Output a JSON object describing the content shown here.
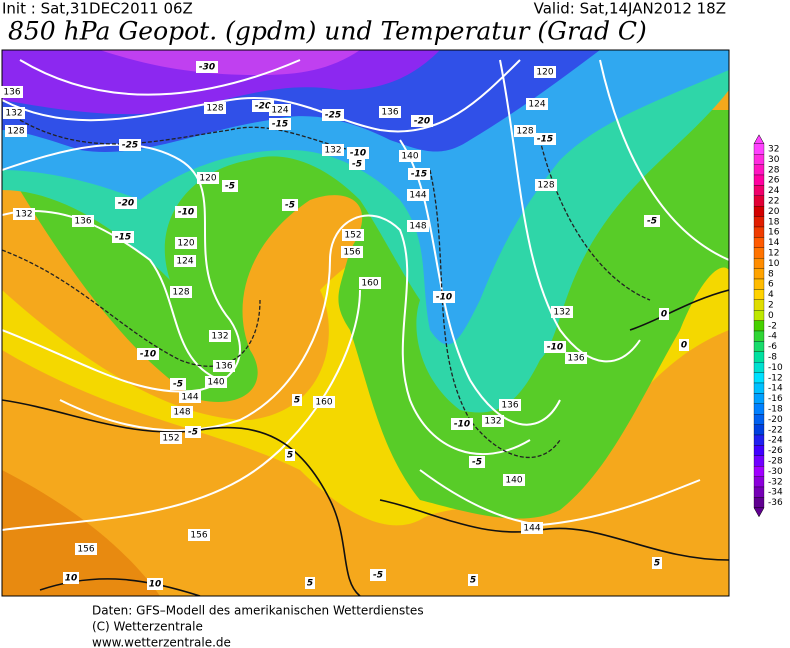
{
  "header": {
    "init": "Init : Sat,31DEC2011 06Z",
    "valid": "Valid: Sat,14JAN2012 18Z",
    "title": "850 hPa Geopot. (gpdm) und Temperatur (Grad C)"
  },
  "colorbar": {
    "labels": [
      32,
      30,
      28,
      26,
      24,
      22,
      20,
      18,
      16,
      14,
      12,
      10,
      8,
      6,
      4,
      2,
      0,
      -2,
      -4,
      -6,
      -8,
      -10,
      -12,
      -14,
      -16,
      -18,
      -20,
      -22,
      -24,
      -26,
      -28,
      -30,
      -32,
      -34,
      -36
    ]
  },
  "contour_labels": [
    "-30",
    "136",
    "132",
    "128",
    "128",
    "-20",
    "124",
    "-15",
    "-25",
    "-20",
    "136",
    "120",
    "124",
    "128",
    "-15",
    "-25",
    "132",
    "-5",
    "-10",
    "140",
    "-15",
    "120",
    "-5",
    "128",
    "144",
    "-20",
    "-10",
    "132",
    "136",
    "-5",
    "148",
    "-15",
    "120",
    "152",
    "156",
    "124",
    "-5",
    "160",
    "128",
    "-10",
    "132",
    "132",
    "-10",
    "-10",
    "136",
    "136",
    "-5",
    "140",
    "144",
    "148",
    "160",
    "5",
    "136",
    "-10",
    "132",
    "152",
    "-5",
    "5",
    "-5",
    "140",
    "144",
    "156",
    "156",
    "10",
    "10",
    "5",
    "-5",
    "5",
    "5",
    "0",
    "0"
  ],
  "footer": [
    "Daten: GFS–Modell des amerikanischen Wetterdienstes",
    "(C) Wetterzentrale",
    "www.wetterzentrale.de"
  ]
}
